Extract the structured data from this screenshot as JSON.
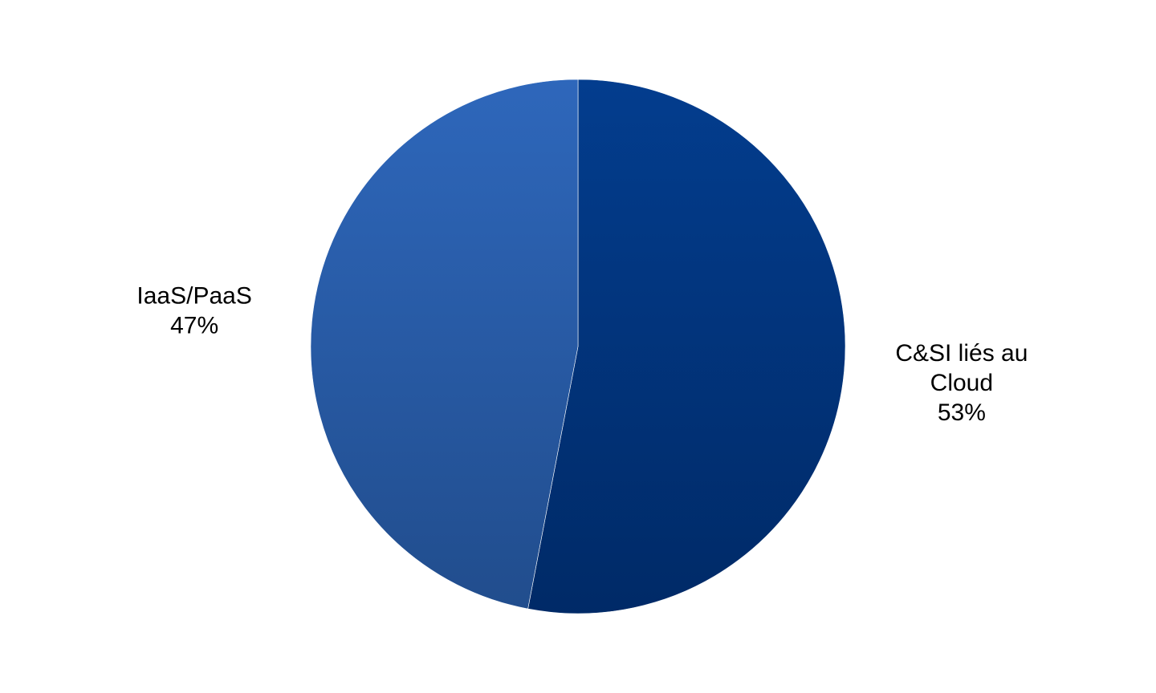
{
  "chart_data": {
    "type": "pie",
    "title": "",
    "start_angle_deg": 0,
    "direction": "clockwise",
    "slices": [
      {
        "label_lines": [
          "C&SI liés au",
          "Cloud"
        ],
        "percent_label": "53%",
        "value": 53,
        "color_top": "#033d8e",
        "color_bottom": "#002a67"
      },
      {
        "label_lines": [
          "IaaS/PaaS"
        ],
        "percent_label": "47%",
        "value": 47,
        "color_top": "#2e67bb",
        "color_bottom": "#214d8d"
      }
    ],
    "legend": "none"
  }
}
